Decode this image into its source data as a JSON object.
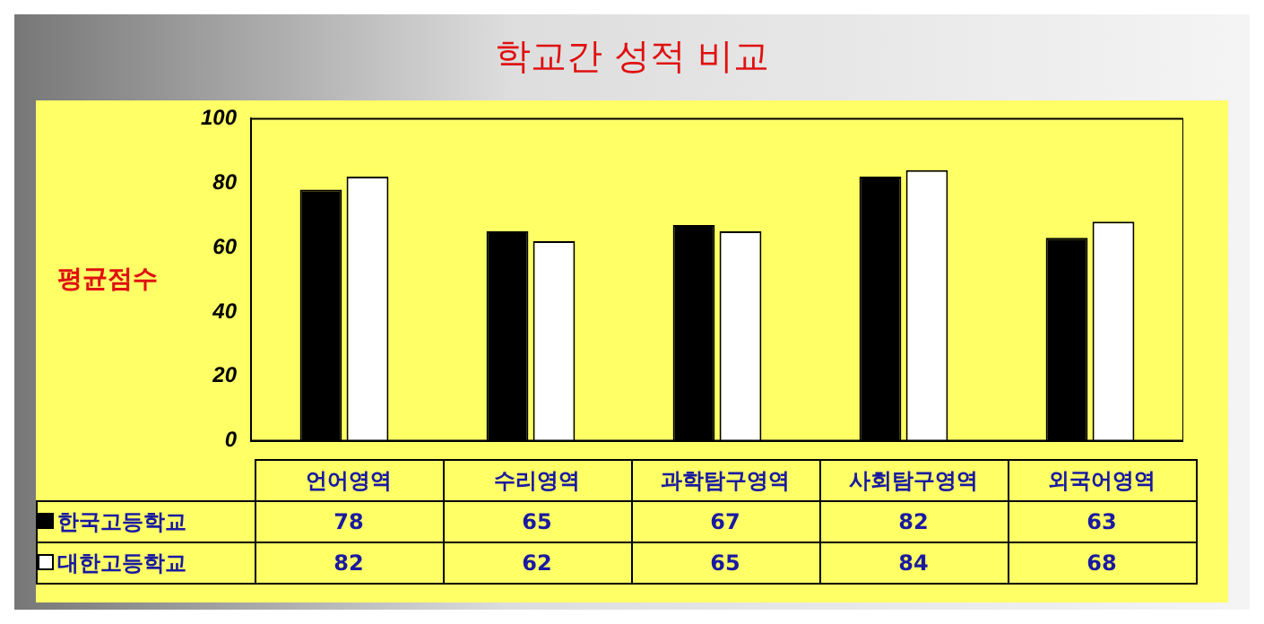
{
  "chart_data": {
    "type": "bar",
    "title": "학교간 성적 비교",
    "ylabel": "평균점수",
    "categories": [
      "언어영역",
      "수리영역",
      "과학탐구영역",
      "사회탐구영역",
      "외국어영역"
    ],
    "series": [
      {
        "name": "한국고등학교",
        "color": "#000000",
        "values": [
          78,
          65,
          67,
          82,
          63
        ]
      },
      {
        "name": "대한고등학교",
        "color": "#ffffff",
        "values": [
          82,
          62,
          65,
          84,
          68
        ]
      }
    ],
    "ylim": [
      0,
      100
    ],
    "yticks": [
      0,
      20,
      40,
      60,
      80,
      100
    ],
    "data_labels": true,
    "legend": "bottom"
  }
}
